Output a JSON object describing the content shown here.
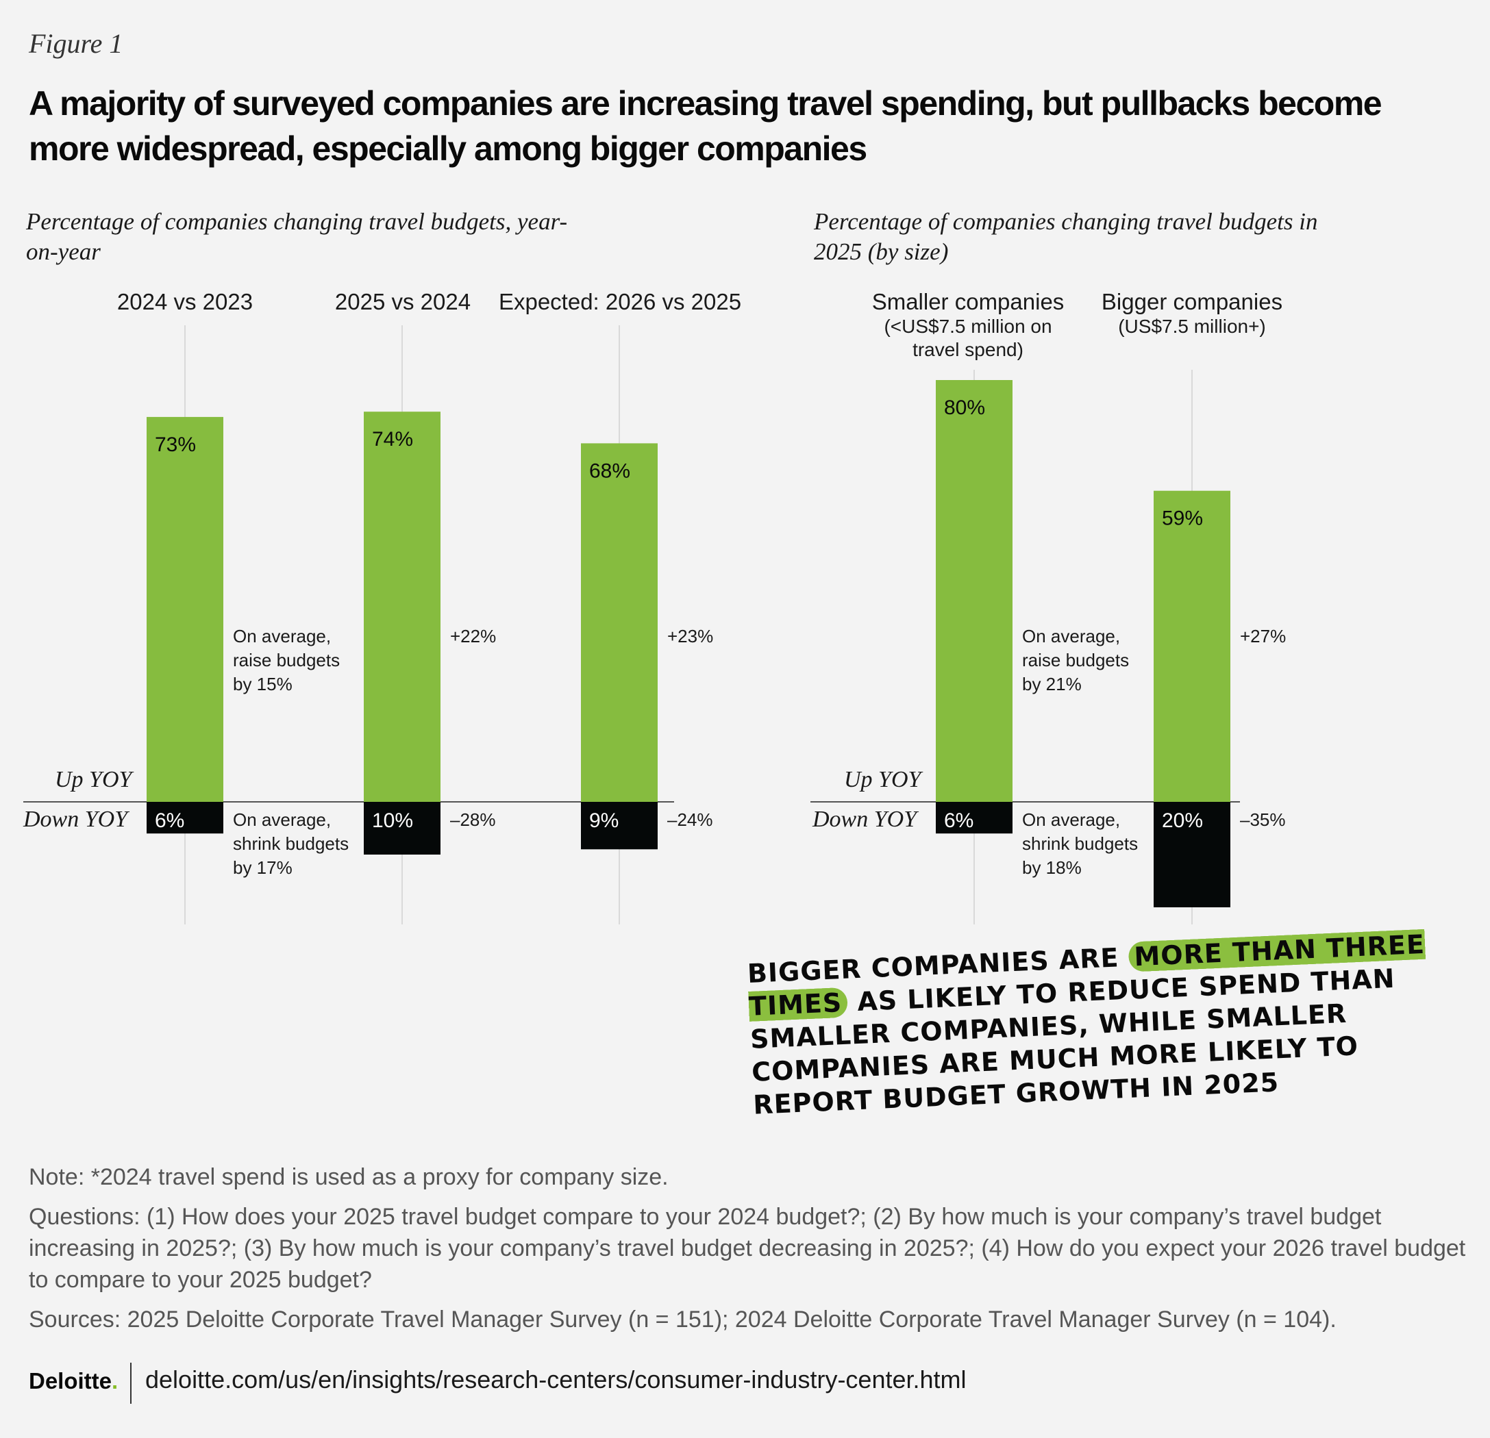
{
  "figure_label": "Figure 1",
  "title": "A majority of surveyed companies are increasing travel spending, but pullbacks become more widespread, especially among bigger companies",
  "left_panel": {
    "subtitle": "Percentage of companies changing travel budgets, year-on-year"
  },
  "right_panel": {
    "subtitle": "Percentage of companies changing travel budgets in 2025 (by size)"
  },
  "labels": {
    "up_yoy": "Up YOY",
    "down_yoy": "Down YOY"
  },
  "colors": {
    "up": "#86bc3f",
    "down": "#050808",
    "gridline": "#d9d9d9",
    "highlight": "#8bbf3f"
  },
  "chart_data": [
    {
      "type": "bar",
      "title": "Percentage of companies changing travel budgets, year-on-year",
      "categories": [
        {
          "label": "2024 vs 2023",
          "sub": ""
        },
        {
          "label": "2025 vs 2024",
          "sub": ""
        },
        {
          "label": "Expected: 2026 vs 2025",
          "sub": ""
        }
      ],
      "series": [
        {
          "name": "Up YOY",
          "values": [
            73,
            74,
            68
          ],
          "labels": [
            "73%",
            "74%",
            "68%"
          ]
        },
        {
          "name": "Down YOY",
          "values": [
            6,
            10,
            9
          ],
          "labels": [
            "6%",
            "10%",
            "9%"
          ]
        }
      ],
      "up_annotations": [
        "On average, raise budgets by 15%",
        "+22%",
        "+23%"
      ],
      "down_annotations": [
        "On average, shrink budgets by 17%",
        "–28%",
        "–24%"
      ]
    },
    {
      "type": "bar",
      "title": "Percentage of companies changing travel budgets in 2025 (by size)",
      "categories": [
        {
          "label": "Smaller companies",
          "sub": "(<US$7.5 million on travel spend)"
        },
        {
          "label": "Bigger companies",
          "sub": "(US$7.5 million+)"
        }
      ],
      "series": [
        {
          "name": "Up YOY",
          "values": [
            80,
            59
          ],
          "labels": [
            "80%",
            "59%"
          ]
        },
        {
          "name": "Down YOY",
          "values": [
            6,
            20
          ],
          "labels": [
            "6%",
            "20%"
          ]
        }
      ],
      "up_annotations": [
        "On average, raise budgets by 21%",
        "+27%"
      ],
      "down_annotations": [
        "On average, shrink budgets by 18%",
        "–35%"
      ]
    }
  ],
  "callout": {
    "before": "BIGGER COMPANIES ARE",
    "highlight": "MORE THAN THREE TIMES",
    "after": "AS LIKELY TO REDUCE SPEND THAN SMALLER COMPANIES, WHILE SMALLER COMPANIES ARE MUCH MORE LIKELY TO REPORT BUDGET GROWTH IN 2025"
  },
  "notes": {
    "note": "Note: *2024 travel spend is used as a proxy for company size.",
    "questions": "Questions: (1) How does your 2025 travel budget compare to your 2024 budget?; (2) By how much is your company’s travel budget increasing in 2025?; (3) By how much is your company’s travel budget decreasing in 2025?; (4) How do you expect your 2026 travel budget to compare to your 2025 budget?",
    "sources": "Sources: 2025 Deloitte Corporate Travel Manager Survey (n = 151); 2024 Deloitte Corporate Travel Manager Survey (n = 104)."
  },
  "footer": {
    "brand": "Deloitte",
    "brand_dot": ".",
    "url": "deloitte.com/us/en/insights/research-centers/consumer-industry-center.html"
  }
}
